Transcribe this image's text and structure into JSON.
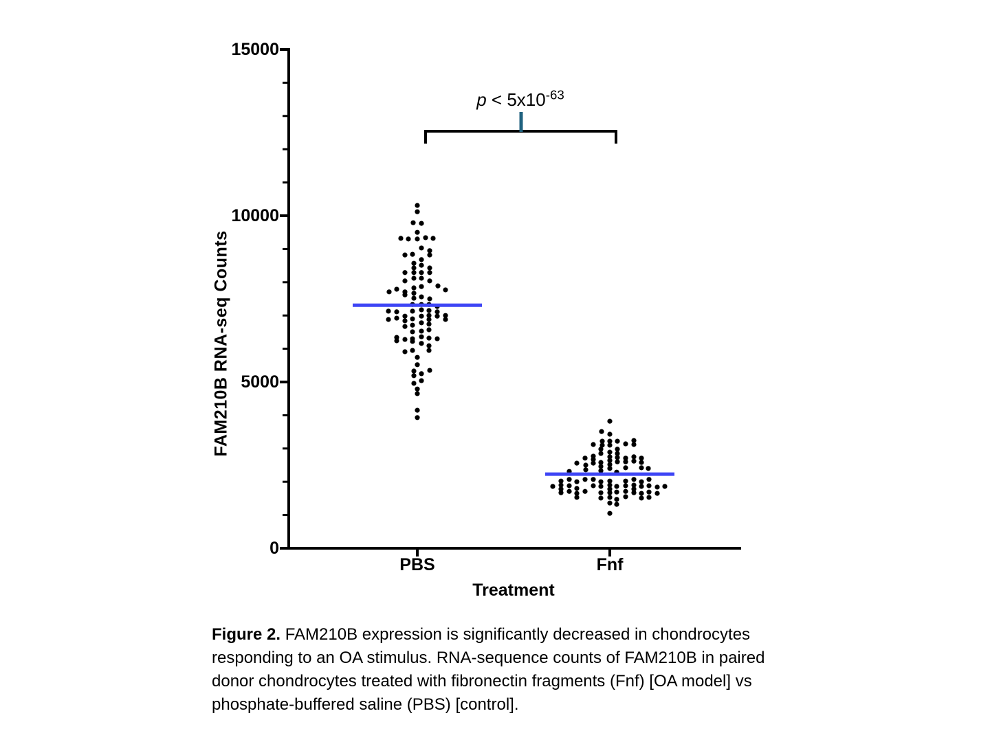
{
  "chart_data": {
    "type": "scatter",
    "subtype": "beeswarm",
    "title": "",
    "xlabel": "Treatment",
    "ylabel": "FAM210B RNA-seq Counts",
    "ylim": [
      0,
      15000
    ],
    "y_major_ticks": [
      0,
      5000,
      10000,
      15000
    ],
    "y_minor_step": 1000,
    "grid": false,
    "categories": [
      "PBS",
      "Fnf"
    ],
    "point_color": "#000000",
    "mean_line_color": "#3e45f5",
    "groups": [
      {
        "name": "PBS",
        "mean": 7310,
        "points": [
          [
            0,
            10310
          ],
          [
            0,
            10120
          ],
          [
            -6,
            9790
          ],
          [
            6,
            9770
          ],
          [
            0,
            9500
          ],
          [
            -24,
            9320
          ],
          [
            -13,
            9300
          ],
          [
            0,
            9300
          ],
          [
            12,
            9340
          ],
          [
            23,
            9320
          ],
          [
            6,
            9030
          ],
          [
            18,
            8950
          ],
          [
            -18,
            8820
          ],
          [
            -7,
            8840
          ],
          [
            18,
            8820
          ],
          [
            6,
            8680
          ],
          [
            -5,
            8570
          ],
          [
            6,
            8510
          ],
          [
            -5,
            8430
          ],
          [
            18,
            8430
          ],
          [
            -18,
            8290
          ],
          [
            -5,
            8290
          ],
          [
            6,
            8290
          ],
          [
            18,
            8290
          ],
          [
            -5,
            8120
          ],
          [
            6,
            8120
          ],
          [
            -18,
            8040
          ],
          [
            18,
            8040
          ],
          [
            30,
            7890
          ],
          [
            6,
            7870
          ],
          [
            -5,
            7830
          ],
          [
            -30,
            7790
          ],
          [
            41,
            7770
          ],
          [
            -41,
            7710
          ],
          [
            -18,
            7710
          ],
          [
            -5,
            7670
          ],
          [
            -18,
            7620
          ],
          [
            6,
            7560
          ],
          [
            -5,
            7520
          ],
          [
            18,
            7500
          ],
          [
            -7,
            7330
          ],
          [
            6,
            7330
          ],
          [
            17,
            7330
          ],
          [
            29,
            7270
          ],
          [
            -42,
            7130
          ],
          [
            -30,
            7110
          ],
          [
            -7,
            7130
          ],
          [
            6,
            7170
          ],
          [
            17,
            7150
          ],
          [
            29,
            7110
          ],
          [
            -42,
            6880
          ],
          [
            -30,
            6920
          ],
          [
            -18,
            6980
          ],
          [
            -7,
            6900
          ],
          [
            6,
            6980
          ],
          [
            17,
            7000
          ],
          [
            17,
            6880
          ],
          [
            29,
            6980
          ],
          [
            41,
            7000
          ],
          [
            41,
            6880
          ],
          [
            -18,
            6840
          ],
          [
            -18,
            6670
          ],
          [
            -7,
            6710
          ],
          [
            6,
            6780
          ],
          [
            17,
            6740
          ],
          [
            -7,
            6510
          ],
          [
            6,
            6530
          ],
          [
            17,
            6570
          ],
          [
            6,
            6360
          ],
          [
            -30,
            6340
          ],
          [
            -30,
            6240
          ],
          [
            -18,
            6280
          ],
          [
            -7,
            6300
          ],
          [
            -7,
            6220
          ],
          [
            6,
            6160
          ],
          [
            17,
            6320
          ],
          [
            29,
            6300
          ],
          [
            17,
            6090
          ],
          [
            -18,
            5910
          ],
          [
            -7,
            5950
          ],
          [
            17,
            5950
          ],
          [
            0,
            5740
          ],
          [
            0,
            5520
          ],
          [
            -5,
            5330
          ],
          [
            18,
            5350
          ],
          [
            -5,
            5190
          ],
          [
            6,
            5250
          ],
          [
            6,
            5040
          ],
          [
            -5,
            4960
          ],
          [
            0,
            4790
          ],
          [
            0,
            4650
          ],
          [
            0,
            4150
          ],
          [
            0,
            3930
          ]
        ]
      },
      {
        "name": "Fnf",
        "mean": 2230,
        "points": [
          [
            0,
            3820
          ],
          [
            -12,
            3510
          ],
          [
            0,
            3430
          ],
          [
            -24,
            3120
          ],
          [
            -11,
            3220
          ],
          [
            -11,
            3100
          ],
          [
            0,
            3220
          ],
          [
            0,
            3100
          ],
          [
            11,
            3220
          ],
          [
            23,
            3140
          ],
          [
            35,
            3240
          ],
          [
            35,
            3120
          ],
          [
            -13,
            2980
          ],
          [
            -13,
            2850
          ],
          [
            0,
            2890
          ],
          [
            11,
            2980
          ],
          [
            11,
            2850
          ],
          [
            -48,
            2560
          ],
          [
            -36,
            2710
          ],
          [
            -35,
            2500
          ],
          [
            -24,
            2770
          ],
          [
            -24,
            2670
          ],
          [
            -24,
            2560
          ],
          [
            -13,
            2580
          ],
          [
            -13,
            2460
          ],
          [
            0,
            2750
          ],
          [
            0,
            2640
          ],
          [
            0,
            2520
          ],
          [
            11,
            2730
          ],
          [
            11,
            2600
          ],
          [
            23,
            2710
          ],
          [
            23,
            2600
          ],
          [
            35,
            2750
          ],
          [
            35,
            2620
          ],
          [
            46,
            2710
          ],
          [
            46,
            2580
          ],
          [
            -59,
            2310
          ],
          [
            -35,
            2360
          ],
          [
            -13,
            2330
          ],
          [
            0,
            2400
          ],
          [
            10,
            2290
          ],
          [
            23,
            2420
          ],
          [
            46,
            2420
          ],
          [
            56,
            2400
          ],
          [
            -71,
            2020
          ],
          [
            -59,
            2070
          ],
          [
            -48,
            2000
          ],
          [
            -36,
            2070
          ],
          [
            -24,
            2070
          ],
          [
            -13,
            2000
          ],
          [
            0,
            2020
          ],
          [
            23,
            2020
          ],
          [
            35,
            2070
          ],
          [
            46,
            2000
          ],
          [
            57,
            2070
          ],
          [
            -83,
            1860
          ],
          [
            -71,
            1900
          ],
          [
            -71,
            1780
          ],
          [
            -59,
            1880
          ],
          [
            -48,
            1800
          ],
          [
            -24,
            1880
          ],
          [
            -13,
            1860
          ],
          [
            0,
            1900
          ],
          [
            0,
            1780
          ],
          [
            10,
            1860
          ],
          [
            23,
            1880
          ],
          [
            35,
            1900
          ],
          [
            35,
            1780
          ],
          [
            46,
            1860
          ],
          [
            57,
            1880
          ],
          [
            69,
            1840
          ],
          [
            80,
            1860
          ],
          [
            -71,
            1670
          ],
          [
            -59,
            1710
          ],
          [
            -48,
            1650
          ],
          [
            -36,
            1710
          ],
          [
            -13,
            1670
          ],
          [
            0,
            1670
          ],
          [
            10,
            1690
          ],
          [
            23,
            1710
          ],
          [
            35,
            1670
          ],
          [
            46,
            1650
          ],
          [
            57,
            1690
          ],
          [
            69,
            1650
          ],
          [
            -48,
            1530
          ],
          [
            -13,
            1510
          ],
          [
            0,
            1530
          ],
          [
            10,
            1470
          ],
          [
            23,
            1550
          ],
          [
            46,
            1510
          ],
          [
            57,
            1530
          ],
          [
            0,
            1360
          ],
          [
            10,
            1320
          ],
          [
            0,
            1050
          ]
        ]
      }
    ],
    "annotation": {
      "p_italic": "p",
      "relation": " < ",
      "mantissa": "5x10",
      "exponent": "-63",
      "tick_color": "#20627f"
    }
  },
  "caption": {
    "bold_label": "Figure 2.",
    "line1_rest": " FAM210B expression is significantly decreased in chondrocytes",
    "line2": "responding to an OA stimulus. RNA-sequence counts of FAM210B in paired",
    "line3": "donor chondrocytes treated with fibronectin fragments (Fnf) [OA model] vs",
    "line4": "phosphate-buffered saline (PBS) [control]."
  }
}
